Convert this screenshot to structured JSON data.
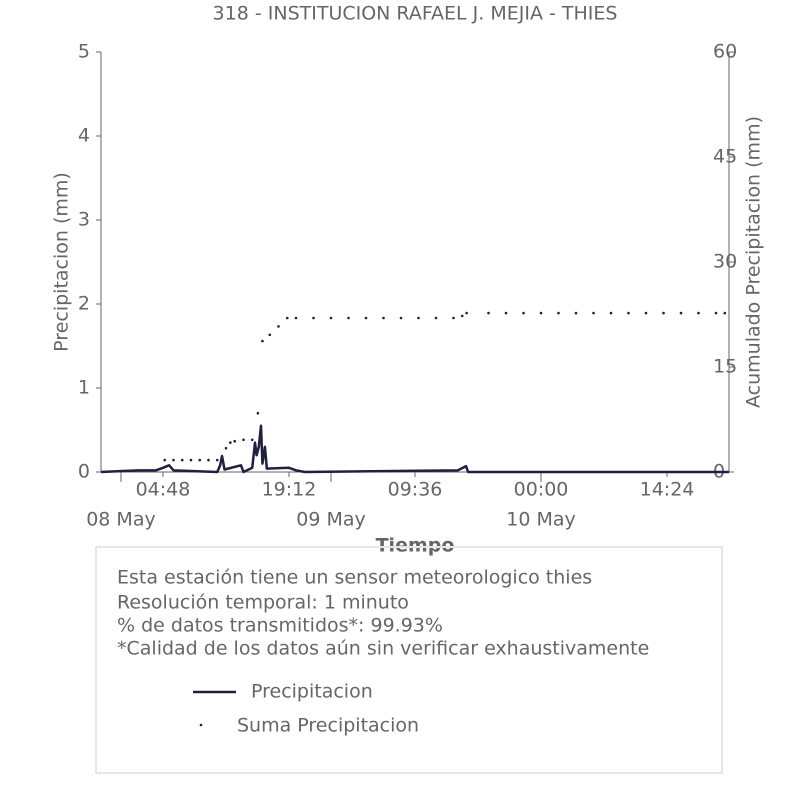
{
  "chart_data": {
    "type": "line",
    "title": "318 - INSTITUCION RAFAEL J. MEJIA - THIES",
    "xlabel": "Tiempo",
    "ylabel": "Precipitacion (mm)",
    "y2label": "Acumulado Precipitacion (mm)",
    "xlim": [
      "07 May 21:43",
      "10 May 21:29"
    ],
    "ylim": [
      0,
      5
    ],
    "yticks": [
      0,
      1,
      2,
      3,
      4,
      5
    ],
    "y2lim": [
      0,
      60
    ],
    "y2ticks": [
      0,
      15,
      30,
      45,
      60
    ],
    "xticks": [
      {
        "value": "08 May 04:48",
        "label": "04:48"
      },
      {
        "value": "08 May 19:12",
        "label": "19:12"
      },
      {
        "value": "09 May 09:36",
        "label": "09:36"
      },
      {
        "value": "10 May 00:00",
        "label": "00:00"
      },
      {
        "value": "10 May 14:24",
        "label": "14:24"
      }
    ],
    "xdates": [
      {
        "value": "08 May 00:00",
        "label": "08 May"
      },
      {
        "value": "09 May 00:00",
        "label": "09 May"
      },
      {
        "value": "10 May 00:00",
        "label": "10 May"
      }
    ],
    "series": [
      {
        "name": "Precipitacion",
        "color": "#1f2041",
        "style": "line",
        "x": [
          "07 May 21:43",
          "08 May 02:00",
          "08 May 04:00",
          "08 May 04:48",
          "08 May 05:30",
          "08 May 06:00",
          "08 May 11:00",
          "08 May 11:20",
          "08 May 11:33",
          "08 May 11:50",
          "08 May 13:43",
          "08 May 14:00",
          "08 May 15:00",
          "08 May 15:19",
          "08 May 15:30",
          "08 May 15:45",
          "08 May 16:00",
          "08 May 16:10",
          "08 May 16:27",
          "08 May 16:40",
          "08 May 19:12",
          "08 May 20:00",
          "08 May 21:00",
          "09 May 14:30",
          "09 May 15:26",
          "09 May 15:40",
          "10 May 21:29"
        ],
        "values": [
          0,
          0.02,
          0.02,
          0.05,
          0.08,
          0.02,
          0,
          0.08,
          0.19,
          0.03,
          0.08,
          0,
          0.05,
          0.35,
          0.2,
          0.3,
          0.55,
          0.1,
          0.3,
          0.04,
          0.05,
          0.02,
          0,
          0.02,
          0.07,
          0,
          0
        ]
      },
      {
        "name": "Suma Precipitacion",
        "color": "#1f2041",
        "style": "dots",
        "axis": "y2",
        "x": [
          "08 May 05:00",
          "08 May 06:00",
          "08 May 07:00",
          "08 May 08:00",
          "08 May 09:00",
          "08 May 10:00",
          "08 May 11:00",
          "08 May 12:00",
          "08 May 12:30",
          "08 May 13:00",
          "08 May 14:00",
          "08 May 15:00",
          "08 May 15:39",
          "08 May 16:10",
          "08 May 17:00",
          "08 May 18:00",
          "08 May 19:00",
          "08 May 20:00",
          "08 May 22:00",
          "09 May 00:00",
          "09 May 02:00",
          "09 May 04:00",
          "09 May 06:00",
          "09 May 08:00",
          "09 May 10:00",
          "09 May 12:00",
          "09 May 14:00",
          "09 May 15:00",
          "09 May 15:30",
          "09 May 18:00",
          "09 May 20:00",
          "09 May 22:00",
          "10 May 00:00",
          "10 May 02:00",
          "10 May 04:00",
          "10 May 06:00",
          "10 May 08:00",
          "10 May 10:00",
          "10 May 12:00",
          "10 May 14:00",
          "10 May 16:00",
          "10 May 18:00",
          "10 May 20:00",
          "10 May 21:00"
        ],
        "values": [
          1.7,
          1.7,
          1.7,
          1.7,
          1.7,
          1.7,
          1.7,
          3.4,
          4.2,
          4.4,
          4.6,
          4.6,
          8.4,
          18.7,
          19.6,
          20.8,
          22.0,
          22.0,
          22.0,
          22.0,
          22.0,
          22.0,
          22.0,
          22.0,
          22.0,
          22.0,
          22.0,
          22.3,
          22.7,
          22.7,
          22.7,
          22.7,
          22.7,
          22.7,
          22.7,
          22.7,
          22.7,
          22.7,
          22.7,
          22.7,
          22.7,
          22.7,
          22.7,
          22.7
        ]
      }
    ],
    "notes": [
      "Esta estación tiene un sensor meteorologico thies",
      "Resolución temporal: 1 minuto",
      "% de datos transmitidos*: 99.93%",
      "*Calidad de los datos aún sin verificar exhaustivamente"
    ]
  }
}
